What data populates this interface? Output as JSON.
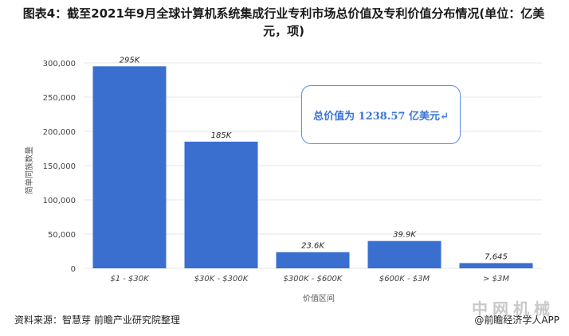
{
  "title": "图表4：截至2021年9月全球计算机系统集成行业专利市场总价值及专利价值分布情况(单位：亿美元，项)",
  "annotation": "总价值为 1238.57 亿美元↵",
  "source": "资料来源：智慧芽 前瞻产业研究院整理",
  "credit": "@前瞻经济学人APP",
  "site_watermark": "中网机械",
  "colors": {
    "bar": "#3a6fd0",
    "grid": "#e4e4e4",
    "accent": "#3a76d8"
  },
  "chart_data": {
    "type": "bar",
    "categories": [
      "$1 - $30K",
      "$30K - $300K",
      "$300K - $600K",
      "$600K - $3M",
      "> $3M"
    ],
    "values": [
      295000,
      185000,
      23600,
      39900,
      7645
    ],
    "data_labels": [
      "295K",
      "185K",
      "23.6K",
      "39.9K",
      "7,645"
    ],
    "xlabel": "价值区间",
    "ylabel": "简单同族数量",
    "ylim": [
      0,
      300000
    ],
    "yticks": [
      0,
      50000,
      100000,
      150000,
      200000,
      250000,
      300000
    ],
    "ytick_labels": [
      "0",
      "50,000",
      "100,000",
      "150,000",
      "200,000",
      "250,000",
      "300,000"
    ],
    "grid": true
  }
}
